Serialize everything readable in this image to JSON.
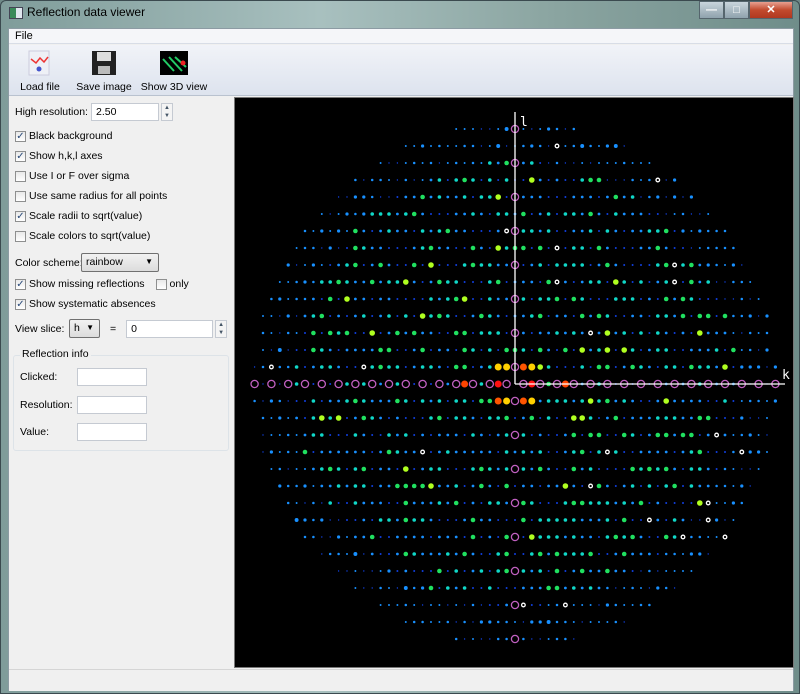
{
  "window": {
    "title": "Reflection data viewer",
    "minimize": "—",
    "maximize": "□",
    "close": "✕"
  },
  "menu": {
    "file": "File"
  },
  "toolbar": {
    "load": "Load file",
    "save": "Save image",
    "show3d": "Show 3D view"
  },
  "controls": {
    "high_res_label": "High resolution:",
    "high_res_value": "2.50",
    "black_bg": {
      "label": "Black background",
      "checked": true
    },
    "show_axes": {
      "label": "Show h,k,l axes",
      "checked": true
    },
    "i_over_sigma": {
      "label": "Use I or F over sigma",
      "checked": false
    },
    "same_radius": {
      "label": "Use same radius for all points",
      "checked": false
    },
    "scale_radii": {
      "label": "Scale radii to sqrt(value)",
      "checked": true
    },
    "scale_colors": {
      "label": "Scale colors to sqrt(value)",
      "checked": false
    },
    "color_scheme_label": "Color scheme:",
    "color_scheme_value": "rainbow",
    "show_missing": {
      "label": "Show missing reflections",
      "checked": true
    },
    "only": {
      "label": "only",
      "checked": false
    },
    "show_absences": {
      "label": "Show systematic absences",
      "checked": true
    },
    "view_slice_label": "View slice:",
    "slice_axis": "h",
    "equals": "=",
    "slice_value": "0"
  },
  "reflection_info": {
    "title": "Reflection info",
    "clicked_label": "Clicked:",
    "clicked": "",
    "resolution_label": "Resolution:",
    "resolution": "",
    "value_label": "Value:",
    "value": ""
  },
  "plot": {
    "vertical_axis": "l",
    "horizontal_axis": "k",
    "background": "#000000",
    "missing_color": "#c060c0",
    "absence_color": "#ffffff"
  }
}
